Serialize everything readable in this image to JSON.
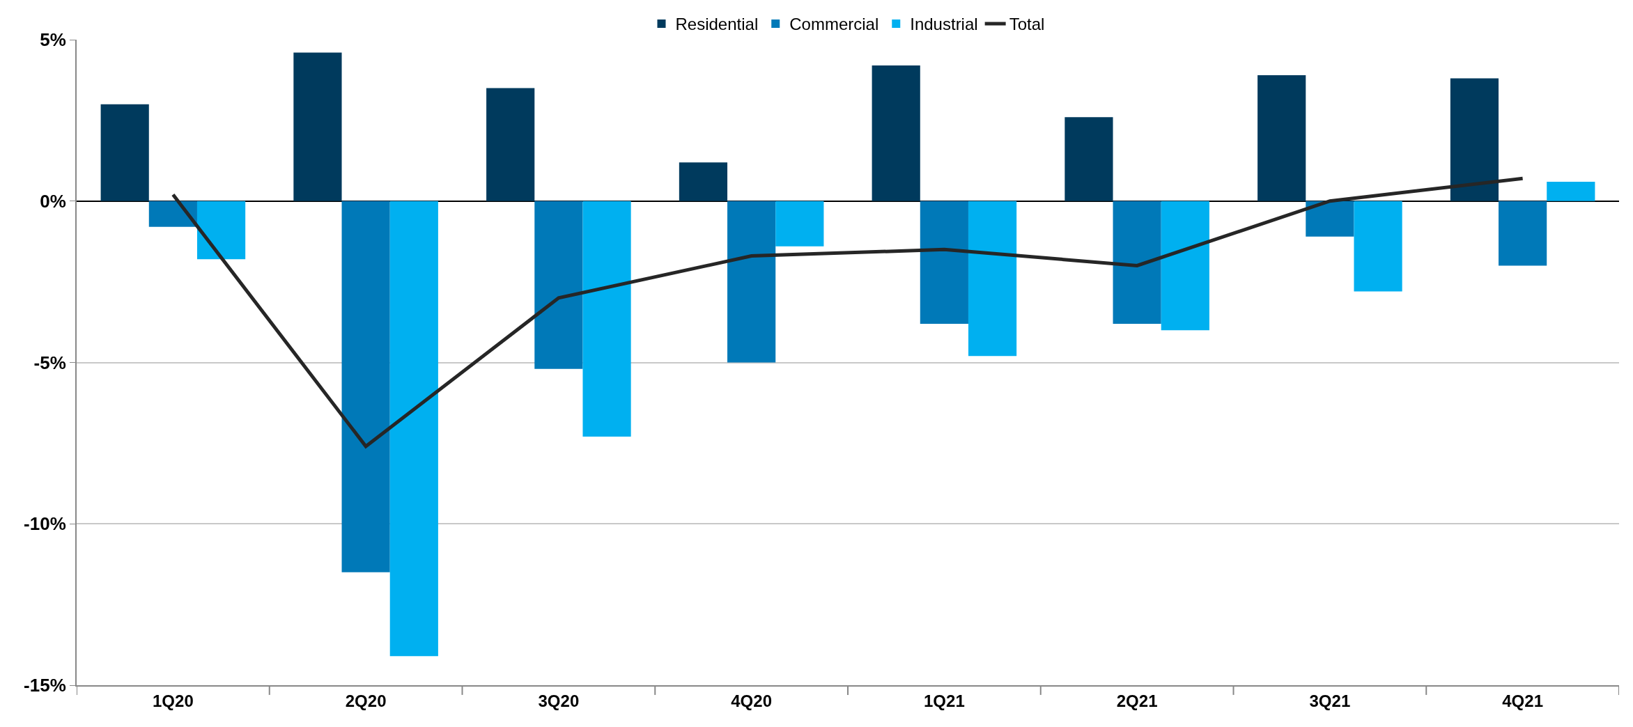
{
  "chart_data": {
    "type": "bar",
    "categories": [
      "1Q20",
      "2Q20",
      "3Q20",
      "4Q20",
      "1Q21",
      "2Q21",
      "3Q21",
      "4Q21"
    ],
    "series": [
      {
        "name": "Residential",
        "color": "#003a5d",
        "values": [
          3.0,
          4.6,
          3.5,
          1.2,
          4.2,
          2.6,
          3.9,
          3.8
        ]
      },
      {
        "name": "Commercial",
        "color": "#0079b8",
        "values": [
          -0.8,
          -11.5,
          -5.2,
          -5.0,
          -3.8,
          -3.8,
          -1.1,
          -2.0
        ]
      },
      {
        "name": "Industrial",
        "color": "#00b0f0",
        "values": [
          -1.8,
          -14.1,
          -7.3,
          -1.4,
          -4.8,
          -4.0,
          -2.8,
          0.6
        ]
      },
      {
        "name": "Total",
        "type": "line",
        "color": "#262626",
        "values": [
          0.2,
          -7.6,
          -3.0,
          -1.7,
          -1.5,
          -2.0,
          0.0,
          0.7
        ]
      }
    ],
    "ylim": [
      -15,
      5
    ],
    "yticks": [
      {
        "value": 5,
        "label": "5%"
      },
      {
        "value": 0,
        "label": "0%"
      },
      {
        "value": -5,
        "label": "-5%"
      },
      {
        "value": -10,
        "label": "-10%"
      },
      {
        "value": -15,
        "label": "-15%"
      }
    ],
    "grid": "y",
    "legend": "top",
    "marker": "none",
    "line_style": "solid"
  }
}
